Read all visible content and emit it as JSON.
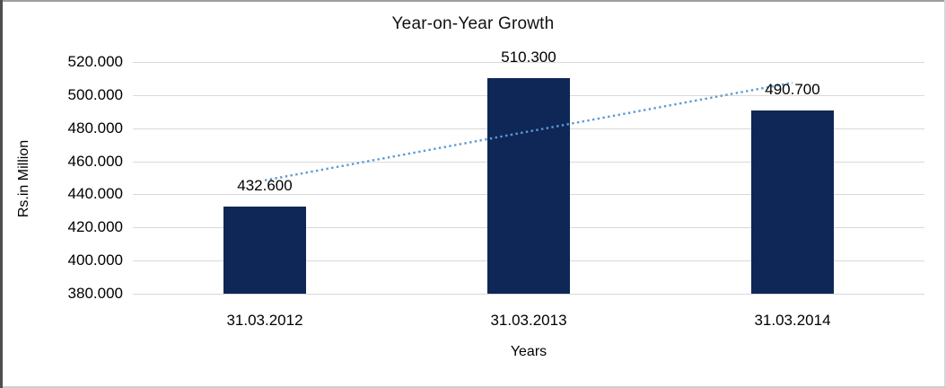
{
  "chart_data": {
    "type": "bar",
    "title": "Year-on-Year Growth",
    "xlabel": "Years",
    "ylabel": "Rs.in Million",
    "categories": [
      "31.03.2012",
      "31.03.2013",
      "31.03.2014"
    ],
    "values": [
      432.6,
      510.3,
      490.7
    ],
    "data_labels": [
      "432.600",
      "510.300",
      "490.700"
    ],
    "y_ticks": [
      {
        "value": 520,
        "label": "520.000"
      },
      {
        "value": 500,
        "label": "500.000"
      },
      {
        "value": 480,
        "label": "480.000"
      },
      {
        "value": 460,
        "label": "460.000"
      },
      {
        "value": 440,
        "label": "440.000"
      },
      {
        "value": 420,
        "label": "420.000"
      },
      {
        "value": 400,
        "label": "400.000"
      },
      {
        "value": 380,
        "label": "380.000"
      }
    ],
    "ylim": [
      380,
      520
    ],
    "grid": true,
    "legend": "none",
    "trendline": {
      "type": "linear",
      "style": "dotted",
      "start_value": 448.5,
      "end_value": 507.5
    },
    "colors": {
      "bar": "#0E2757",
      "trendline": "#5B9BD5",
      "gridline": "#D9D9D9",
      "text": "#000000",
      "background": "#FFFFFF"
    }
  }
}
